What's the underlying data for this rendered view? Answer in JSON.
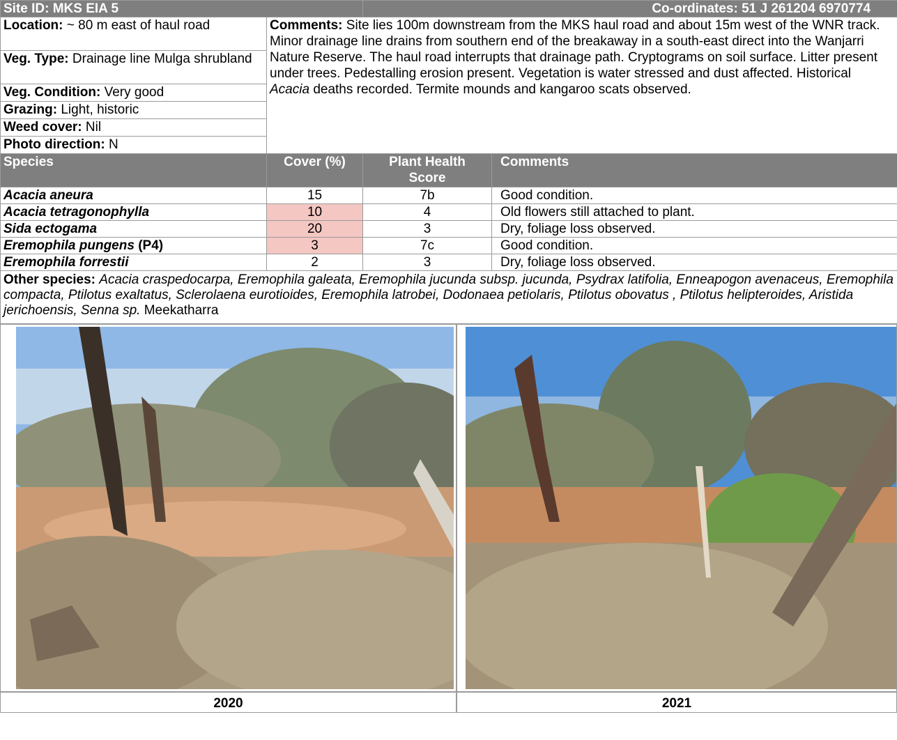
{
  "header": {
    "site_id": "Site ID: MKS EIA 5",
    "coordinates": "Co-ordinates: 51 J 261204 6970774"
  },
  "site_info": [
    {
      "label": "Location:",
      "value": "~ 80 m east of haul road"
    },
    {
      "label": "Veg. Type:",
      "value": "Drainage line Mulga shrubland"
    },
    {
      "label": "Veg. Condition:",
      "value": "Very good"
    },
    {
      "label": "Grazing:",
      "value": "Light, historic"
    },
    {
      "label": "Weed cover:",
      "value": "Nil"
    },
    {
      "label": "Photo direction:",
      "value": "N"
    }
  ],
  "comments": {
    "label": "Comments:",
    "text": "Site lies 100m downstream from the MKS haul road and about 15m west of the WNR track. Minor drainage line drains from southern end of the breakaway in a south-east direct into the Wanjarri Nature Reserve. The haul road interrupts that drainage path. Cryptograms on soil surface. Litter present under trees. Pedestalling erosion present. Vegetation is water stressed and dust affected. Historical",
    "italic": "Acacia",
    "text_end": "deaths recorded. Termite mounds and kangaroo scats observed."
  },
  "species_table": {
    "headers": [
      "Species",
      "Cover (%)",
      "Plant Health Score",
      "Comments"
    ],
    "rows": [
      {
        "species": "Acacia aneura",
        "cover": 15,
        "health": "7b",
        "comment": "Good condition."
      },
      {
        "species": "Acacia tetragonophylla",
        "cover": 10,
        "health": 4,
        "comment": "Old flowers still attached to plant."
      },
      {
        "species": "Sida ectogama",
        "cover": 20,
        "health": 3,
        "comment": "Dry, foliage loss observed."
      },
      {
        "species": "Eremophila pungens",
        "status": "(P4)",
        "cover": 3,
        "health": "7c",
        "comment": "Good condition."
      },
      {
        "species": "Eremophila forrestii",
        "cover": 2,
        "health": 3,
        "comment": "Dry, foliage loss observed."
      }
    ]
  },
  "other_species": {
    "label": "Other species:",
    "italic": "Acacia craspedocarpa, Eremophila galeata, Eremophila jucunda subsp. jucunda, Psydrax latifolia, Enneapogon avenaceus, Eremophila compacta, Ptilotus exaltatus, Sclerolaena eurotioides, Eremophila latrobei, Dodonaea petiolaris, Ptilotus obovatus , Ptilotus helipteroides, Aristida jerichoensis, Senna sp.",
    "text": "Meekatharra"
  },
  "photos": [
    {
      "caption": "2020"
    },
    {
      "caption": "2021"
    }
  ]
}
